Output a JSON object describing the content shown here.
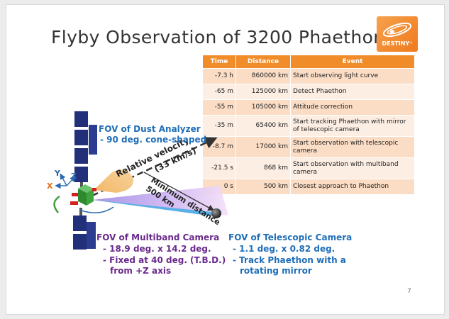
{
  "slide": {
    "title": "Flyby Observation of 3200 Phaethon",
    "page_number": "7"
  },
  "logo": {
    "text": "DESTINY⁺"
  },
  "timeline": {
    "headers": [
      "Time",
      "Distance",
      "Event"
    ],
    "rows": [
      {
        "time": "-7.3 h",
        "distance": "860000 km",
        "event": "Start observing light curve"
      },
      {
        "time": "-65 m",
        "distance": "125000 km",
        "event": "Detect Phaethon"
      },
      {
        "time": "-55 m",
        "distance": "105000 km",
        "event": "Attitude correction"
      },
      {
        "time": "-35 m",
        "distance": "65400 km",
        "event": "Start tracking Phaethon with mirror of telescopic camera"
      },
      {
        "time": "-8.7 m",
        "distance": "17000 km",
        "event": "Start observation with telescopic camera"
      },
      {
        "time": "-21.5 s",
        "distance": "868 km",
        "event": "Start observation with multiband camera"
      },
      {
        "time": "0 s",
        "distance": "500 km",
        "event": "Closest approach to Phaethon"
      }
    ]
  },
  "labels": {
    "fov_dust_title": "FOV of Dust Analyzer",
    "fov_dust_detail": "- 90 deg. cone-shaped",
    "relative_velocity_1": "Relative velocity",
    "relative_velocity_2": "(33 km/s)",
    "minimum_distance_1": "Minimum distance",
    "minimum_distance_2": "500 km",
    "axis_x": "X",
    "axis_y": "Y",
    "axis_z": "Z",
    "fov_multiband_title": "FOV of Multiband Camera",
    "fov_multiband_line1": "- 18.9 deg. x 14.2 deg.",
    "fov_multiband_line2": "- Fixed at 40 deg. (T.B.D.)",
    "fov_multiband_line3": "from +Z axis",
    "fov_telescopic_title": "FOV of Telescopic Camera",
    "fov_telescopic_line1": "- 1.1 deg. x 0.82 deg.",
    "fov_telescopic_line2": "- Track Phaethon with a",
    "fov_telescopic_line3": "rotating mirror"
  },
  "colors": {
    "accent_orange": "#f08c2a",
    "label_blue": "#1f6eb8",
    "label_purple": "#6a2a8c",
    "panel_navy": "#22307a",
    "spacecraft_green": "#3a9d3a"
  }
}
